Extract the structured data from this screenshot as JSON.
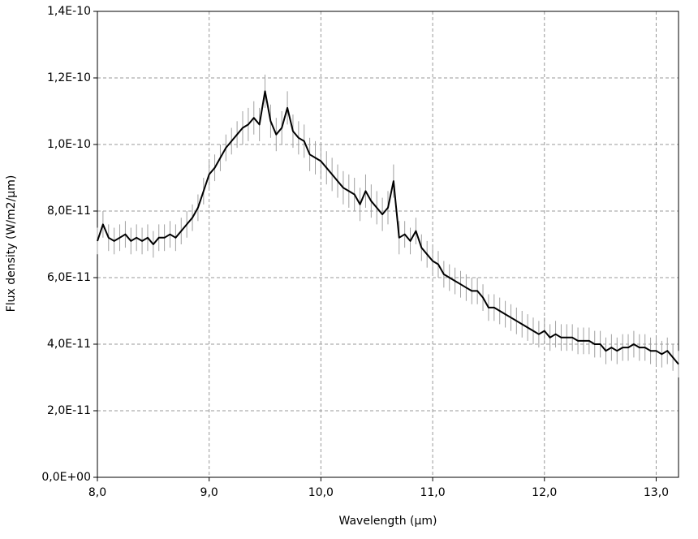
{
  "chart_data": {
    "type": "line",
    "x_label": "Wavelength (µm)",
    "y_label": "Flux density (W/m2/µm)",
    "x": [
      8.0,
      8.05,
      8.1,
      8.15,
      8.2,
      8.25,
      8.3,
      8.35,
      8.4,
      8.45,
      8.5,
      8.55,
      8.6,
      8.65,
      8.7,
      8.75,
      8.8,
      8.85,
      8.9,
      8.95,
      9.0,
      9.05,
      9.1,
      9.15,
      9.2,
      9.25,
      9.3,
      9.35,
      9.4,
      9.45,
      9.5,
      9.55,
      9.6,
      9.65,
      9.7,
      9.75,
      9.8,
      9.85,
      9.9,
      9.95,
      10.0,
      10.05,
      10.1,
      10.15,
      10.2,
      10.25,
      10.3,
      10.35,
      10.4,
      10.45,
      10.5,
      10.55,
      10.6,
      10.65,
      10.7,
      10.75,
      10.8,
      10.85,
      10.9,
      10.95,
      11.0,
      11.05,
      11.1,
      11.15,
      11.2,
      11.25,
      11.3,
      11.35,
      11.4,
      11.45,
      11.5,
      11.55,
      11.6,
      11.65,
      11.7,
      11.75,
      11.8,
      11.85,
      11.9,
      11.95,
      12.0,
      12.05,
      12.1,
      12.15,
      12.2,
      12.25,
      12.3,
      12.35,
      12.4,
      12.45,
      12.5,
      12.55,
      12.6,
      12.65,
      12.7,
      12.75,
      12.8,
      12.85,
      12.9,
      12.95,
      13.0,
      13.05,
      13.1,
      13.15,
      13.2
    ],
    "series": [
      {
        "color": "#000000",
        "error_color": "#a0a0a0",
        "values": [
          7.1e-11,
          7.6e-11,
          7.2e-11,
          7.1e-11,
          7.2e-11,
          7.3e-11,
          7.1e-11,
          7.2e-11,
          7.1e-11,
          7.2e-11,
          7e-11,
          7.2e-11,
          7.2e-11,
          7.3e-11,
          7.2e-11,
          7.4e-11,
          7.6e-11,
          7.8e-11,
          8.1e-11,
          8.6e-11,
          9.1e-11,
          9.3e-11,
          9.6e-11,
          9.9e-11,
          1.01e-10,
          1.03e-10,
          1.05e-10,
          1.06e-10,
          1.08e-10,
          1.06e-10,
          1.16e-10,
          1.07e-10,
          1.03e-10,
          1.05e-10,
          1.11e-10,
          1.04e-10,
          1.02e-10,
          1.01e-10,
          9.7e-11,
          9.6e-11,
          9.5e-11,
          9.3e-11,
          9.1e-11,
          8.9e-11,
          8.7e-11,
          8.6e-11,
          8.5e-11,
          8.2e-11,
          8.6e-11,
          8.3e-11,
          8.1e-11,
          7.9e-11,
          8.1e-11,
          8.9e-11,
          7.2e-11,
          7.3e-11,
          7.1e-11,
          7.4e-11,
          6.9e-11,
          6.7e-11,
          6.5e-11,
          6.4e-11,
          6.1e-11,
          6e-11,
          5.9e-11,
          5.8e-11,
          5.7e-11,
          5.6e-11,
          5.6e-11,
          5.4e-11,
          5.1e-11,
          5.1e-11,
          5e-11,
          4.9e-11,
          4.8e-11,
          4.7e-11,
          4.6e-11,
          4.5e-11,
          4.4e-11,
          4.3e-11,
          4.4e-11,
          4.2e-11,
          4.3e-11,
          4.2e-11,
          4.2e-11,
          4.2e-11,
          4.1e-11,
          4.1e-11,
          4.1e-11,
          4e-11,
          4e-11,
          3.8e-11,
          3.9e-11,
          3.8e-11,
          3.9e-11,
          3.9e-11,
          4e-11,
          3.9e-11,
          3.9e-11,
          3.8e-11,
          3.8e-11,
          3.7e-11,
          3.8e-11,
          3.6e-11,
          3.4e-11
        ],
        "errors": [
          4e-12,
          4e-12,
          4e-12,
          4e-12,
          4e-12,
          4e-12,
          4e-12,
          4e-12,
          4e-12,
          4e-12,
          4e-12,
          4e-12,
          4e-12,
          4e-12,
          4e-12,
          4e-12,
          4e-12,
          4e-12,
          4e-12,
          4e-12,
          4e-12,
          4e-12,
          4e-12,
          4e-12,
          4e-12,
          4e-12,
          5e-12,
          5e-12,
          5e-12,
          5e-12,
          5e-12,
          5e-12,
          5e-12,
          5e-12,
          5e-12,
          5e-12,
          5e-12,
          5e-12,
          5e-12,
          5e-12,
          5e-12,
          5e-12,
          5e-12,
          5e-12,
          5e-12,
          5e-12,
          5e-12,
          5e-12,
          5e-12,
          5e-12,
          5e-12,
          5e-12,
          5e-12,
          5e-12,
          5e-12,
          4e-12,
          4e-12,
          4e-12,
          4e-12,
          4e-12,
          4e-12,
          4e-12,
          4e-12,
          4e-12,
          4e-12,
          4e-12,
          4e-12,
          4e-12,
          4e-12,
          4e-12,
          4e-12,
          4e-12,
          4e-12,
          4e-12,
          4e-12,
          4e-12,
          4e-12,
          4e-12,
          4e-12,
          4e-12,
          4e-12,
          4e-12,
          4e-12,
          4e-12,
          4e-12,
          4e-12,
          4e-12,
          4e-12,
          4e-12,
          4e-12,
          4e-12,
          4e-12,
          4e-12,
          4e-12,
          4e-12,
          4e-12,
          4e-12,
          4e-12,
          4e-12,
          4e-12,
          4e-12,
          4e-12,
          4e-12,
          4e-12,
          4e-12
        ]
      }
    ],
    "xlim": [
      8.0,
      13.2
    ],
    "xticks": [
      {
        "value": 8,
        "label": "8,0"
      },
      {
        "value": 9,
        "label": "9,0"
      },
      {
        "value": 10,
        "label": "10,0"
      },
      {
        "value": 11,
        "label": "11,0"
      },
      {
        "value": 12,
        "label": "12,0"
      },
      {
        "value": 13,
        "label": "13,0"
      }
    ],
    "ylim": [
      0,
      1.4e-10
    ],
    "yticks": [
      {
        "value": 0,
        "label": "0,0E+00"
      },
      {
        "value": 2e-11,
        "label": "2,0E-11"
      },
      {
        "value": 4e-11,
        "label": "4,0E-11"
      },
      {
        "value": 6e-11,
        "label": "6,0E-11"
      },
      {
        "value": 8e-11,
        "label": "8,0E-11"
      },
      {
        "value": 1e-10,
        "label": "1,0E-10"
      },
      {
        "value": 1.2e-10,
        "label": "1,2E-10"
      },
      {
        "value": 1.4e-10,
        "label": "1,4E-10"
      }
    ],
    "grid": true
  }
}
